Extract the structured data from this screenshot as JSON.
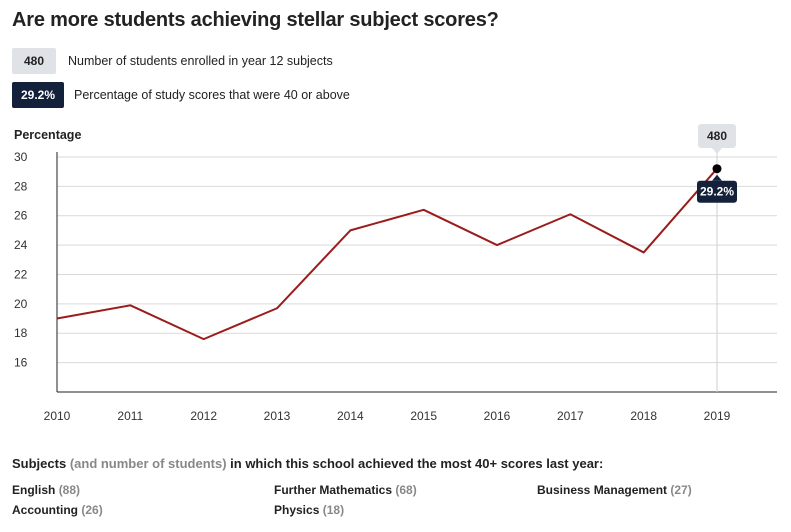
{
  "title": "Are more students achieving stellar subject scores?",
  "legend": {
    "students": {
      "chip": "480",
      "text": "Number of students enrolled in year 12 subjects"
    },
    "percentage": {
      "chip": "29.2%",
      "text": "Percentage of study scores that were 40 or above"
    }
  },
  "colors": {
    "line": "#9b1c1c",
    "chip_dark": "#13213a",
    "chip_light": "#dfe3e8",
    "grid": "#d9d9d9"
  },
  "chart_data": {
    "type": "line",
    "ylabel": "Percentage",
    "xlabel": "",
    "x": [
      2010,
      2011,
      2012,
      2013,
      2014,
      2015,
      2016,
      2017,
      2018,
      2019
    ],
    "series": [
      {
        "values": [
          19.0,
          19.9,
          17.6,
          19.7,
          25.0,
          26.4,
          24.0,
          26.1,
          23.5,
          29.2
        ]
      }
    ],
    "yticks": [
      16,
      18,
      20,
      22,
      24,
      26,
      28,
      30
    ],
    "ylim": [
      14,
      30.2
    ],
    "grid": true,
    "highlight": {
      "x": 2019,
      "value_label": "29.2%",
      "students_label": "480"
    }
  },
  "subjects": {
    "title_main": "Subjects",
    "title_paren": "(and number of students)",
    "title_rest": "in which this school achieved the most 40+ scores last year:",
    "items": [
      {
        "name": "English",
        "count": "(88)"
      },
      {
        "name": "Further Mathematics",
        "count": "(68)"
      },
      {
        "name": "Business Management",
        "count": "(27)"
      },
      {
        "name": "Accounting",
        "count": "(26)"
      },
      {
        "name": "Physics",
        "count": "(18)"
      }
    ]
  }
}
